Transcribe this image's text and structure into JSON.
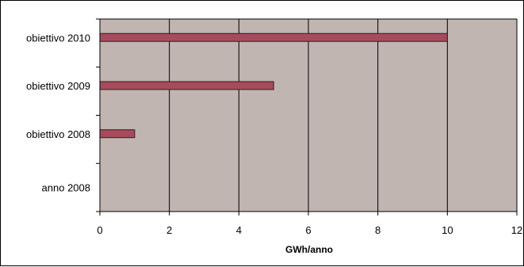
{
  "chart_data": {
    "type": "bar",
    "orientation": "horizontal",
    "title": "",
    "xlabel": "GWh/anno",
    "ylabel": "",
    "categories": [
      "anno 2008",
      "obiettivo 2008",
      "obiettivo 2009",
      "obiettivo 2010"
    ],
    "values": [
      0,
      1,
      5,
      10
    ],
    "xlim": [
      0,
      12
    ],
    "x_ticks": [
      "0",
      "2",
      "4",
      "6",
      "8",
      "10",
      "12"
    ],
    "grid": "vertical",
    "legend": "none",
    "colors": {
      "plot_background": "#c0b5b0",
      "bar_fill": "#a54c5c",
      "bar_stroke": "#3a1a20",
      "gridline": "#000000"
    }
  }
}
